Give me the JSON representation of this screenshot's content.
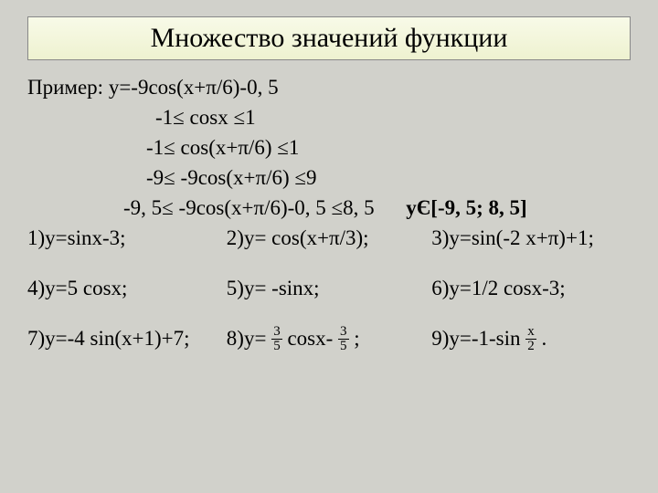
{
  "title": "Множество значений функции",
  "example_label": "Пример: y=-9cos(x+π/6)-0, 5",
  "steps": {
    "s1": "-1≤ cosx ≤1",
    "s2": "-1≤ cos(x+π/6) ≤1",
    "s3": "-9≤ -9cos(x+π/6) ≤9",
    "s4_left": "-9, 5≤ -9cos(x+π/6)-0, 5 ≤8, 5",
    "s4_answer": "yЄ[-9, 5; 8, 5]"
  },
  "problems": {
    "p1": "1)y=sinx-3;",
    "p2": "2)y= cos(x+π/3);",
    "p3": "3)y=sin(-2 x+π)+1;",
    "p4": "4)y=5 cosx;",
    "p5": "5)y= -sinx;",
    "p6": "6)y=1/2 cosx-3;",
    "p7": "7)y=-4 sin(x+1)+7;",
    "p8_pre": "8)y= ",
    "p8_mid": " cosx- ",
    "p8_post": " ;",
    "p9_pre": "9)y=-1-sin ",
    "p9_post": " ."
  },
  "fractions": {
    "f1_num": "3",
    "f1_den": "5",
    "f2_num": "3",
    "f2_den": "5",
    "f3_num": "x",
    "f3_den": "2"
  }
}
